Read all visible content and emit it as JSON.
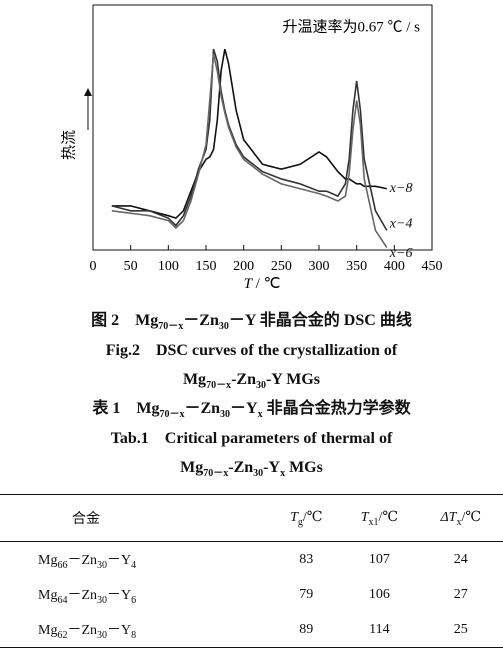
{
  "chart_data": {
    "type": "line",
    "annotation": "升温速率为0.67 ℃ / s",
    "y_label": "热流",
    "x_label": [
      "T",
      " / ℃"
    ],
    "xlim": [
      0,
      450
    ],
    "xticks": [
      0,
      50,
      100,
      150,
      200,
      250,
      300,
      350,
      400,
      450
    ],
    "ylim": [
      0,
      100
    ],
    "x": [
      25,
      50,
      75,
      100,
      110,
      120,
      130,
      140,
      150,
      155,
      160,
      165,
      170,
      175,
      180,
      190,
      200,
      225,
      250,
      275,
      300,
      310,
      325,
      335,
      340,
      345,
      350,
      355,
      360,
      375,
      390
    ],
    "series": [
      {
        "name": "x−8",
        "color": "#111111",
        "values": [
          18,
          18,
          16,
          14,
          13,
          16,
          24,
          32,
          37,
          38,
          41,
          53,
          73,
          82,
          76,
          57,
          45,
          35,
          33,
          35,
          40,
          38,
          32,
          29,
          29,
          28,
          27,
          27,
          26,
          26,
          25
        ]
      },
      {
        "name": "x−4",
        "color": "#333333",
        "values": [
          18,
          16,
          16,
          13,
          10,
          14,
          22,
          33,
          41,
          53,
          82,
          77,
          65,
          57,
          51,
          43,
          38,
          32,
          29,
          27,
          24,
          24,
          22,
          27,
          37,
          57,
          69,
          57,
          37,
          16,
          8
        ]
      },
      {
        "name": "x−6",
        "color": "#666666",
        "values": [
          16,
          15,
          14,
          12,
          9,
          12,
          20,
          31,
          43,
          61,
          80,
          73,
          63,
          56,
          50,
          42,
          37,
          31,
          27,
          25,
          23,
          22,
          20,
          22,
          31,
          49,
          61,
          51,
          29,
          8,
          1
        ]
      }
    ]
  },
  "captions": [
    [
      "图 2　Mg",
      "70－x",
      "－Zn",
      "30",
      "－Y 非晶合金的 DSC 曲线"
    ],
    [
      "Fig.2　DSC curves of the crystallization of"
    ],
    [
      "Mg",
      "70－x",
      "-Zn",
      "30",
      "-Y MGs"
    ],
    [
      "表 1　Mg",
      "70－x",
      "－Zn",
      "30",
      "－Y",
      "x",
      " 非晶合金热力学参数"
    ],
    [
      "Tab.1　Critical parameters of thermal of"
    ],
    [
      "Mg",
      "70－x",
      "-Zn",
      "30",
      "-Y",
      "x",
      " MGs"
    ]
  ],
  "table": {
    "header": [
      [
        "合金"
      ],
      [
        "T",
        "g",
        "/℃"
      ],
      [
        "T",
        "x1",
        "/℃"
      ],
      [
        "ΔT",
        "x",
        "/℃"
      ]
    ],
    "rows": [
      [
        [
          "Mg",
          "66",
          "－Zn",
          "30",
          "－Y",
          "4"
        ],
        83,
        107,
        24
      ],
      [
        [
          "Mg",
          "64",
          "－Zn",
          "30",
          "－Y",
          "6"
        ],
        79,
        106,
        27
      ],
      [
        [
          "Mg",
          "62",
          "－Zn",
          "30",
          "－Y",
          "8"
        ],
        89,
        114,
        25
      ]
    ]
  }
}
